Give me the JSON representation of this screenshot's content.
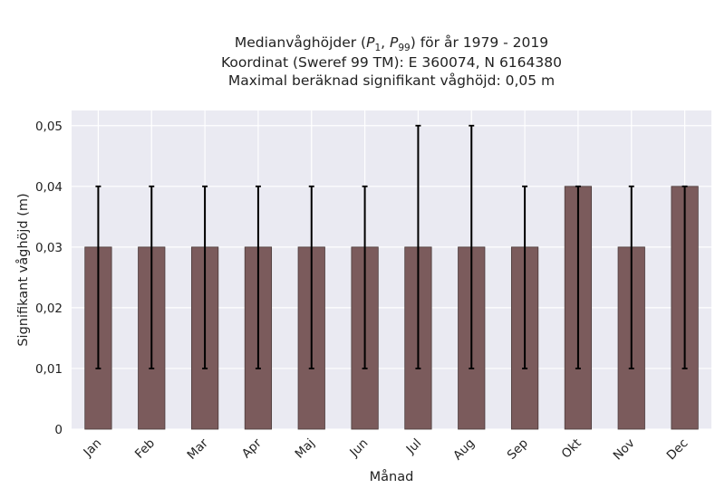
{
  "chart_data": {
    "type": "bar",
    "title_lines": [
      "Medianvåghöjder (P1, P99) för år 1979 - 2019",
      "Koordinat (Sweref 99 TM): E 360074, N 6164380",
      "Maximal beräknad signifikant våghöjd: 0,05 m"
    ],
    "title_math": {
      "prefix": "Medianvåghöjder (",
      "p_symbol": "P",
      "sub1": "1",
      "separator": ", ",
      "sub2": "99",
      "suffix": ") för år 1979 - 2019"
    },
    "xlabel": "Månad",
    "ylabel": "Signifikant våghöjd (m)",
    "categories": [
      "Jan",
      "Feb",
      "Mar",
      "Apr",
      "Maj",
      "Jun",
      "Jul",
      "Aug",
      "Sep",
      "Okt",
      "Nov",
      "Dec"
    ],
    "values": [
      0.03,
      0.03,
      0.03,
      0.03,
      0.03,
      0.03,
      0.03,
      0.03,
      0.03,
      0.04,
      0.03,
      0.04
    ],
    "error_low": [
      0.01,
      0.01,
      0.01,
      0.01,
      0.01,
      0.01,
      0.01,
      0.01,
      0.01,
      0.01,
      0.01,
      0.01
    ],
    "error_high": [
      0.04,
      0.04,
      0.04,
      0.04,
      0.04,
      0.04,
      0.05,
      0.05,
      0.04,
      0.04,
      0.04,
      0.04
    ],
    "ylim": [
      0,
      0.0525
    ],
    "yticks": [
      0,
      0.01,
      0.02,
      0.03,
      0.04,
      0.05
    ],
    "ytick_labels": [
      "0",
      "0,01",
      "0,02",
      "0,03",
      "0,04",
      "0,05"
    ],
    "grid": true,
    "colors": {
      "bar": "#7b5b5c",
      "bar_edge": "#4a3a3a",
      "error": "#000000",
      "plot_bg": "#eaeaf2",
      "grid": "#ffffff"
    }
  }
}
